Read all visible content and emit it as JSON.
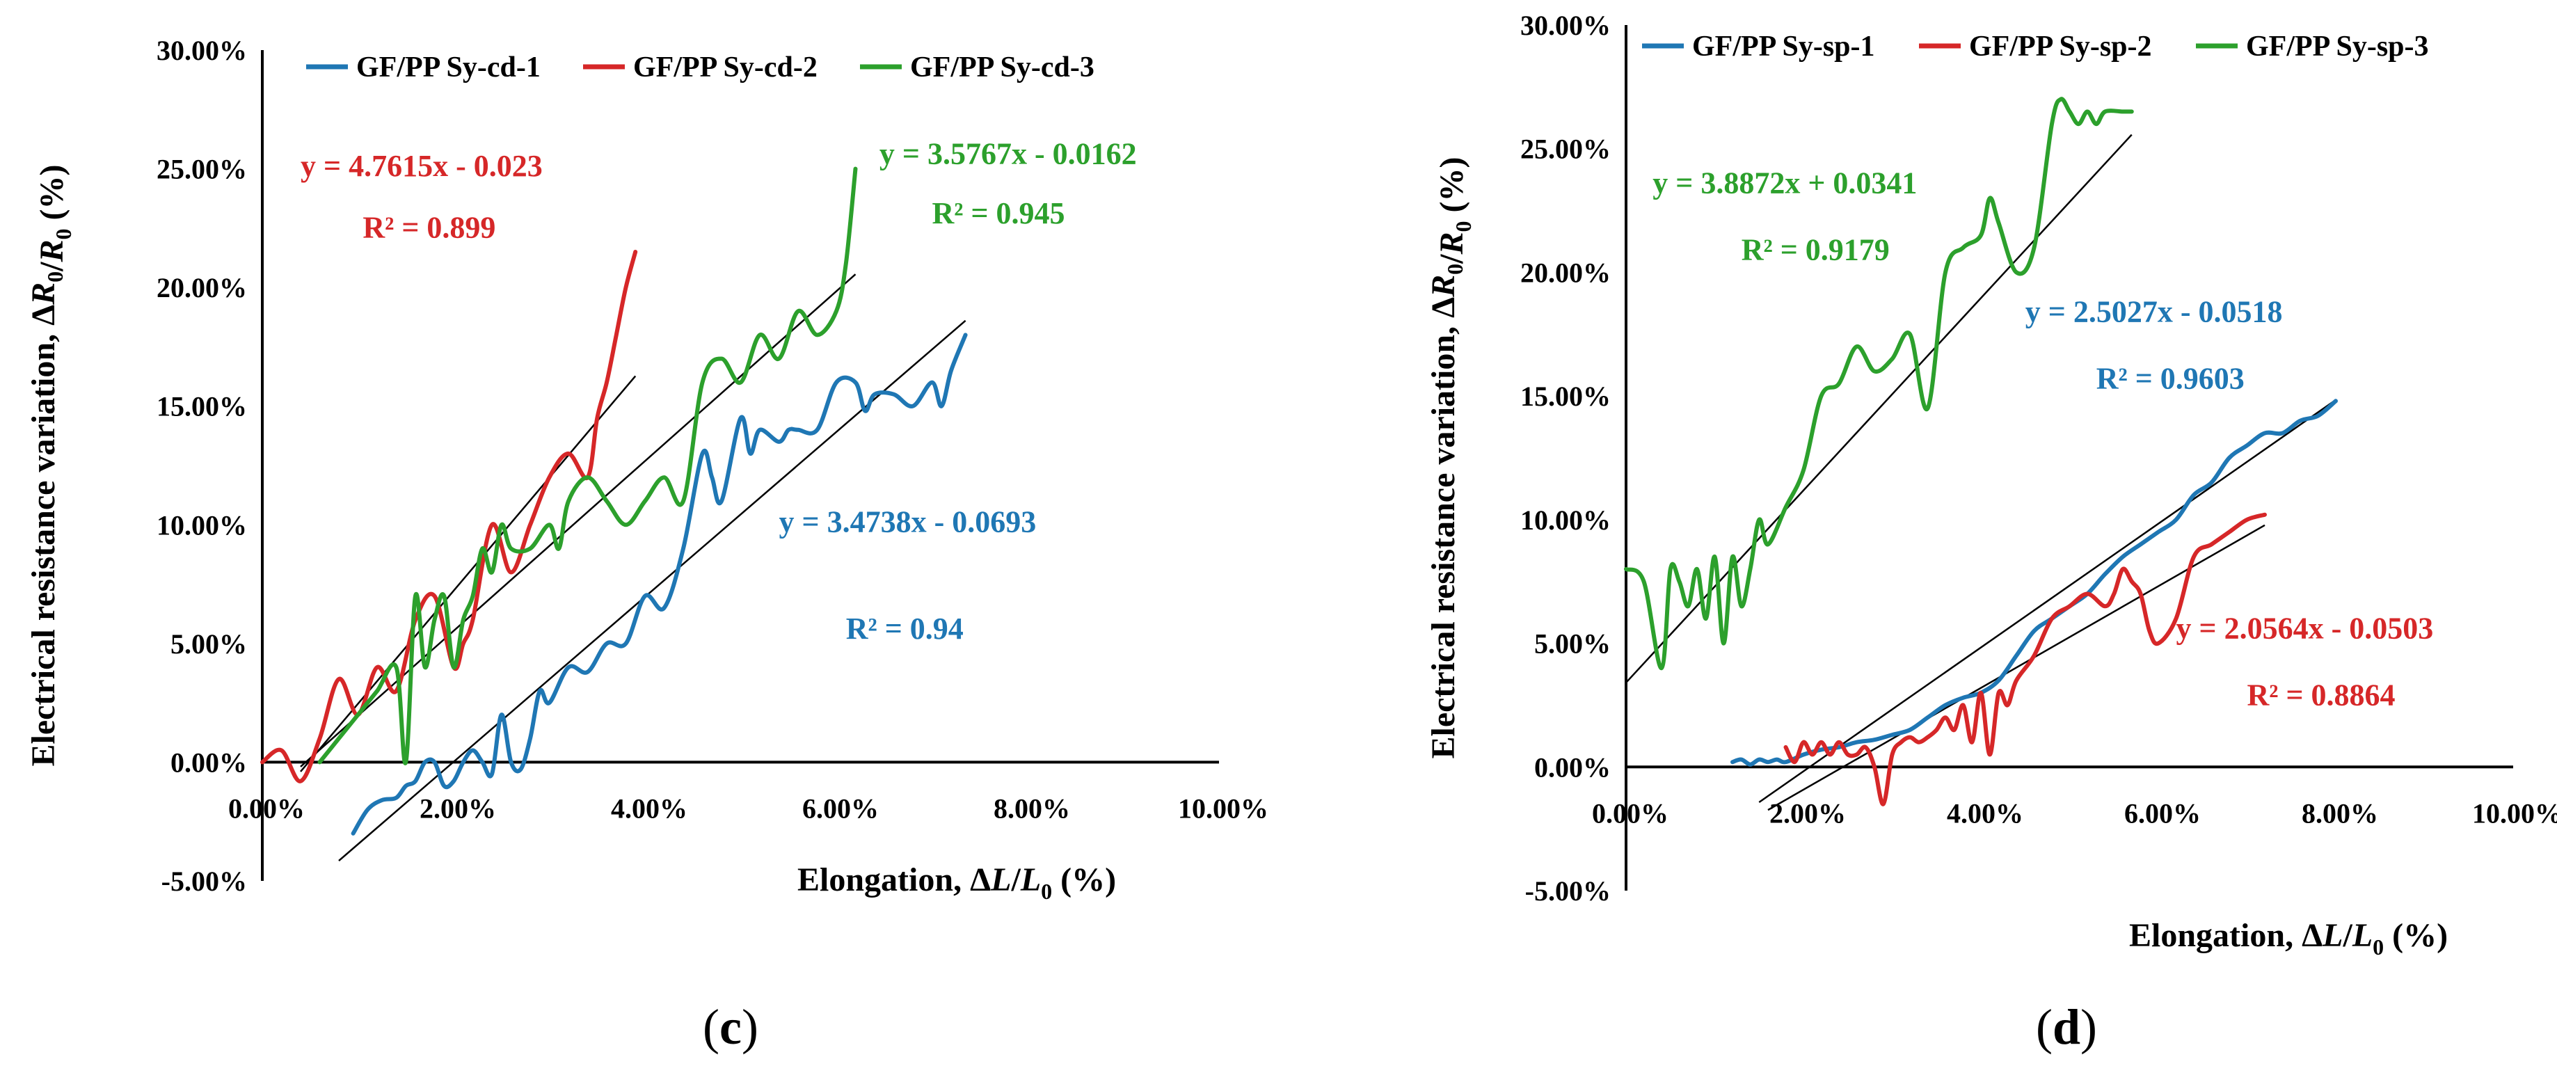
{
  "chart_data": [
    {
      "panel": "c",
      "panel_label": {
        "open": "(",
        "letter": "c",
        "close": ")"
      },
      "type": "line",
      "xlabel": "Elongation, ΔL/L₀ (%)",
      "ylabel": "Electrical resistance variation, ΔR/R₀ (%)",
      "xlabel_parts": {
        "prefix": "Elongation, ",
        "delta": "Δ",
        "L": "L",
        "sub": "0",
        "suffix": " (%)"
      },
      "ylabel_parts": {
        "prefix": "Electrical resistance variation, ",
        "delta": "Δ",
        "R": "R",
        "sub": "0",
        "suffix": " (%)"
      },
      "xlim": [
        0,
        0.1
      ],
      "ylim": [
        -0.05,
        0.3
      ],
      "x_ticks": [
        {
          "value": 0.0,
          "label": "0.00%"
        },
        {
          "value": 0.02,
          "label": "2.00%"
        },
        {
          "value": 0.04,
          "label": "4.00%"
        },
        {
          "value": 0.06,
          "label": "6.00%"
        },
        {
          "value": 0.08,
          "label": "8.00%"
        },
        {
          "value": 0.1,
          "label": "10.00%"
        }
      ],
      "y_ticks": [
        {
          "value": -0.05,
          "label": "-5.00%"
        },
        {
          "value": 0.0,
          "label": "0.00%"
        },
        {
          "value": 0.05,
          "label": "5.00%"
        },
        {
          "value": 0.1,
          "label": "10.00%"
        },
        {
          "value": 0.15,
          "label": "15.00%"
        },
        {
          "value": 0.2,
          "label": "20.00%"
        },
        {
          "value": 0.25,
          "label": "25.00%"
        },
        {
          "value": 0.3,
          "label": "30.00%"
        }
      ],
      "legend_position": "top",
      "series": [
        {
          "name": "GF/PP Sy-cd-1",
          "color": "#1f77b4",
          "x": [
            0.0095,
            0.011,
            0.0125,
            0.014,
            0.015,
            0.016,
            0.017,
            0.018,
            0.019,
            0.02,
            0.021,
            0.022,
            0.023,
            0.024,
            0.025,
            0.026,
            0.027,
            0.028,
            0.029,
            0.03,
            0.032,
            0.034,
            0.036,
            0.038,
            0.04,
            0.042,
            0.044,
            0.046,
            0.047,
            0.048,
            0.05,
            0.051,
            0.052,
            0.054,
            0.055,
            0.056,
            0.058,
            0.06,
            0.062,
            0.063,
            0.064,
            0.066,
            0.068,
            0.07,
            0.071,
            0.072,
            0.0735
          ],
          "y": [
            -0.03,
            -0.02,
            -0.016,
            -0.015,
            -0.01,
            -0.008,
            0.0,
            0.0,
            -0.01,
            -0.008,
            0.0,
            0.005,
            0.0,
            -0.005,
            0.02,
            0.0,
            -0.003,
            0.01,
            0.03,
            0.025,
            0.04,
            0.038,
            0.05,
            0.05,
            0.07,
            0.065,
            0.09,
            0.13,
            0.12,
            0.11,
            0.145,
            0.13,
            0.14,
            0.135,
            0.14,
            0.14,
            0.14,
            0.16,
            0.16,
            0.148,
            0.155,
            0.155,
            0.15,
            0.16,
            0.15,
            0.165,
            0.18
          ]
        },
        {
          "name": "GF/PP Sy-cd-2",
          "color": "#d62728",
          "x": [
            0.0,
            0.002,
            0.004,
            0.006,
            0.008,
            0.01,
            0.012,
            0.014,
            0.016,
            0.018,
            0.02,
            0.021,
            0.022,
            0.024,
            0.026,
            0.028,
            0.03,
            0.032,
            0.034,
            0.035,
            0.036,
            0.037,
            0.038,
            0.039
          ],
          "y": [
            0.0,
            0.005,
            -0.008,
            0.01,
            0.035,
            0.02,
            0.04,
            0.03,
            0.06,
            0.07,
            0.04,
            0.05,
            0.06,
            0.1,
            0.08,
            0.1,
            0.12,
            0.13,
            0.12,
            0.145,
            0.16,
            0.18,
            0.2,
            0.215
          ]
        },
        {
          "name": "GF/PP Sy-cd-3",
          "color": "#2ca02c",
          "x": [
            0.006,
            0.008,
            0.01,
            0.012,
            0.014,
            0.015,
            0.016,
            0.017,
            0.018,
            0.019,
            0.02,
            0.021,
            0.022,
            0.023,
            0.024,
            0.025,
            0.026,
            0.028,
            0.03,
            0.031,
            0.032,
            0.034,
            0.036,
            0.038,
            0.04,
            0.042,
            0.044,
            0.046,
            0.048,
            0.05,
            0.052,
            0.054,
            0.056,
            0.058,
            0.06,
            0.061,
            0.062
          ],
          "y": [
            0.0,
            0.01,
            0.02,
            0.03,
            0.04,
            0.0,
            0.07,
            0.04,
            0.06,
            0.07,
            0.04,
            0.06,
            0.07,
            0.09,
            0.08,
            0.1,
            0.09,
            0.09,
            0.1,
            0.09,
            0.11,
            0.12,
            0.11,
            0.1,
            0.11,
            0.12,
            0.11,
            0.16,
            0.17,
            0.16,
            0.18,
            0.17,
            0.19,
            0.18,
            0.19,
            0.21,
            0.25
          ]
        }
      ],
      "trendlines": [
        {
          "series": "GF/PP Sy-cd-1",
          "color": "#000000",
          "slope": 3.4738,
          "intercept": -0.0693,
          "x_range": [
            0.008,
            0.0735
          ]
        },
        {
          "series": "GF/PP Sy-cd-2",
          "color": "#000000",
          "slope": 4.7615,
          "intercept": -0.023,
          "x_range": [
            0.004,
            0.039
          ]
        },
        {
          "series": "GF/PP Sy-cd-3",
          "color": "#000000",
          "slope": 3.5767,
          "intercept": -0.0162,
          "x_range": [
            0.004,
            0.062
          ]
        }
      ],
      "annotations": [
        {
          "text": "y = 4.7615x - 0.023",
          "color": "#d62728",
          "x": 0.004,
          "y": 0.247,
          "anchor": "start"
        },
        {
          "text": "R² = 0.899",
          "color": "#d62728",
          "x": 0.0105,
          "y": 0.221,
          "anchor": "start"
        },
        {
          "text": "y = 3.5767x - 0.0162",
          "color": "#2ca02c",
          "x": 0.0645,
          "y": 0.252,
          "anchor": "start"
        },
        {
          "text": "R² = 0.945",
          "color": "#2ca02c",
          "x": 0.07,
          "y": 0.227,
          "anchor": "start"
        },
        {
          "text": "y = 3.4738x - 0.0693",
          "color": "#1f77b4",
          "x": 0.054,
          "y": 0.097,
          "anchor": "start"
        },
        {
          "text": "R² = 0.94",
          "color": "#1f77b4",
          "x": 0.061,
          "y": 0.052,
          "anchor": "start"
        }
      ]
    },
    {
      "panel": "d",
      "panel_label": {
        "open": "(",
        "letter": "d",
        "close": ")"
      },
      "type": "line",
      "xlabel": "Elongation, ΔL/L₀ (%)",
      "ylabel": "Electrical resistance variation, ΔR/R₀ (%)",
      "xlabel_parts": {
        "prefix": "Elongation, ",
        "delta": "Δ",
        "L": "L",
        "sub": "0",
        "suffix": " (%)"
      },
      "ylabel_parts": {
        "prefix": "Electrical resistance variation, ",
        "delta": "Δ",
        "R": "R",
        "sub": "0",
        "suffix": " (%)"
      },
      "xlim": [
        0,
        0.1
      ],
      "ylim": [
        -0.05,
        0.3
      ],
      "x_ticks": [
        {
          "value": 0.0,
          "label": "0.00%"
        },
        {
          "value": 0.02,
          "label": "2.00%"
        },
        {
          "value": 0.04,
          "label": "4.00%"
        },
        {
          "value": 0.06,
          "label": "6.00%"
        },
        {
          "value": 0.08,
          "label": "8.00%"
        },
        {
          "value": 0.1,
          "label": "10.00%"
        }
      ],
      "y_ticks": [
        {
          "value": -0.05,
          "label": "-5.00%"
        },
        {
          "value": 0.0,
          "label": "0.00%"
        },
        {
          "value": 0.05,
          "label": "5.00%"
        },
        {
          "value": 0.1,
          "label": "10.00%"
        },
        {
          "value": 0.15,
          "label": "15.00%"
        },
        {
          "value": 0.2,
          "label": "20.00%"
        },
        {
          "value": 0.25,
          "label": "25.00%"
        },
        {
          "value": 0.3,
          "label": "30.00%"
        }
      ],
      "legend_position": "top",
      "series": [
        {
          "name": "GF/PP Sy-sp-1",
          "color": "#1f77b4",
          "x": [
            0.012,
            0.013,
            0.014,
            0.015,
            0.016,
            0.017,
            0.018,
            0.02,
            0.022,
            0.024,
            0.026,
            0.028,
            0.03,
            0.032,
            0.034,
            0.036,
            0.038,
            0.04,
            0.042,
            0.044,
            0.046,
            0.048,
            0.05,
            0.052,
            0.054,
            0.056,
            0.058,
            0.06,
            0.062,
            0.064,
            0.066,
            0.068,
            0.07,
            0.072,
            0.074,
            0.076,
            0.078,
            0.08
          ],
          "y": [
            0.002,
            0.003,
            0.001,
            0.003,
            0.002,
            0.003,
            0.002,
            0.005,
            0.007,
            0.008,
            0.01,
            0.011,
            0.013,
            0.015,
            0.02,
            0.025,
            0.028,
            0.03,
            0.035,
            0.045,
            0.055,
            0.06,
            0.065,
            0.07,
            0.078,
            0.085,
            0.09,
            0.095,
            0.1,
            0.11,
            0.115,
            0.125,
            0.13,
            0.135,
            0.135,
            0.14,
            0.142,
            0.148
          ]
        },
        {
          "name": "GF/PP Sy-sp-2",
          "color": "#d62728",
          "x": [
            0.018,
            0.019,
            0.02,
            0.021,
            0.022,
            0.023,
            0.024,
            0.025,
            0.026,
            0.027,
            0.028,
            0.029,
            0.03,
            0.031,
            0.032,
            0.033,
            0.034,
            0.035,
            0.036,
            0.037,
            0.038,
            0.039,
            0.04,
            0.041,
            0.042,
            0.043,
            0.044,
            0.046,
            0.048,
            0.05,
            0.052,
            0.054,
            0.055,
            0.056,
            0.057,
            0.058,
            0.059,
            0.06,
            0.062,
            0.064,
            0.066,
            0.068,
            0.07,
            0.072
          ],
          "y": [
            0.008,
            0.002,
            0.01,
            0.005,
            0.01,
            0.005,
            0.01,
            0.005,
            0.005,
            0.008,
            0.0,
            -0.015,
            0.005,
            0.01,
            0.012,
            0.01,
            0.012,
            0.015,
            0.02,
            0.015,
            0.025,
            0.01,
            0.03,
            0.005,
            0.03,
            0.025,
            0.035,
            0.045,
            0.06,
            0.065,
            0.07,
            0.065,
            0.07,
            0.08,
            0.075,
            0.07,
            0.055,
            0.05,
            0.06,
            0.085,
            0.09,
            0.095,
            0.1,
            0.102
          ]
        },
        {
          "name": "GF/PP Sy-sp-3",
          "color": "#2ca02c",
          "x": [
            0.0,
            0.002,
            0.004,
            0.005,
            0.006,
            0.007,
            0.008,
            0.009,
            0.01,
            0.011,
            0.012,
            0.013,
            0.014,
            0.015,
            0.016,
            0.018,
            0.02,
            0.022,
            0.024,
            0.026,
            0.028,
            0.03,
            0.032,
            0.034,
            0.036,
            0.038,
            0.04,
            0.041,
            0.042,
            0.044,
            0.046,
            0.048,
            0.049,
            0.05,
            0.051,
            0.052,
            0.053,
            0.054,
            0.056,
            0.057
          ],
          "y": [
            0.08,
            0.075,
            0.04,
            0.08,
            0.075,
            0.065,
            0.08,
            0.06,
            0.085,
            0.05,
            0.085,
            0.065,
            0.08,
            0.1,
            0.09,
            0.105,
            0.12,
            0.15,
            0.155,
            0.17,
            0.16,
            0.165,
            0.175,
            0.145,
            0.2,
            0.21,
            0.215,
            0.23,
            0.22,
            0.2,
            0.21,
            0.26,
            0.27,
            0.265,
            0.26,
            0.265,
            0.26,
            0.265,
            0.265,
            0.265
          ]
        }
      ],
      "trendlines": [
        {
          "series": "GF/PP Sy-sp-1",
          "color": "#000000",
          "slope": 2.5027,
          "intercept": -0.0518,
          "x_range": [
            0.015,
            0.08
          ]
        },
        {
          "series": "GF/PP Sy-sp-2",
          "color": "#000000",
          "slope": 2.0564,
          "intercept": -0.0503,
          "x_range": [
            0.016,
            0.072
          ]
        },
        {
          "series": "GF/PP Sy-sp-3",
          "color": "#000000",
          "slope": 3.8872,
          "intercept": 0.0341,
          "x_range": [
            0.0,
            0.057
          ]
        }
      ],
      "annotations": [
        {
          "text": "y = 3.8872x + 0.0341",
          "color": "#2ca02c",
          "x": 0.003,
          "y": 0.232,
          "anchor": "start"
        },
        {
          "text": "R² = 0.9179",
          "color": "#2ca02c",
          "x": 0.013,
          "y": 0.205,
          "anchor": "start"
        },
        {
          "text": "y = 2.5027x - 0.0518",
          "color": "#1f77b4",
          "x": 0.045,
          "y": 0.18,
          "anchor": "start"
        },
        {
          "text": "R² = 0.9603",
          "color": "#1f77b4",
          "x": 0.053,
          "y": 0.153,
          "anchor": "start"
        },
        {
          "text": "y = 2.0564x - 0.0503",
          "color": "#d62728",
          "x": 0.062,
          "y": 0.052,
          "anchor": "start"
        },
        {
          "text": "R² = 0.8864",
          "color": "#d62728",
          "x": 0.07,
          "y": 0.025,
          "anchor": "start"
        }
      ]
    }
  ]
}
